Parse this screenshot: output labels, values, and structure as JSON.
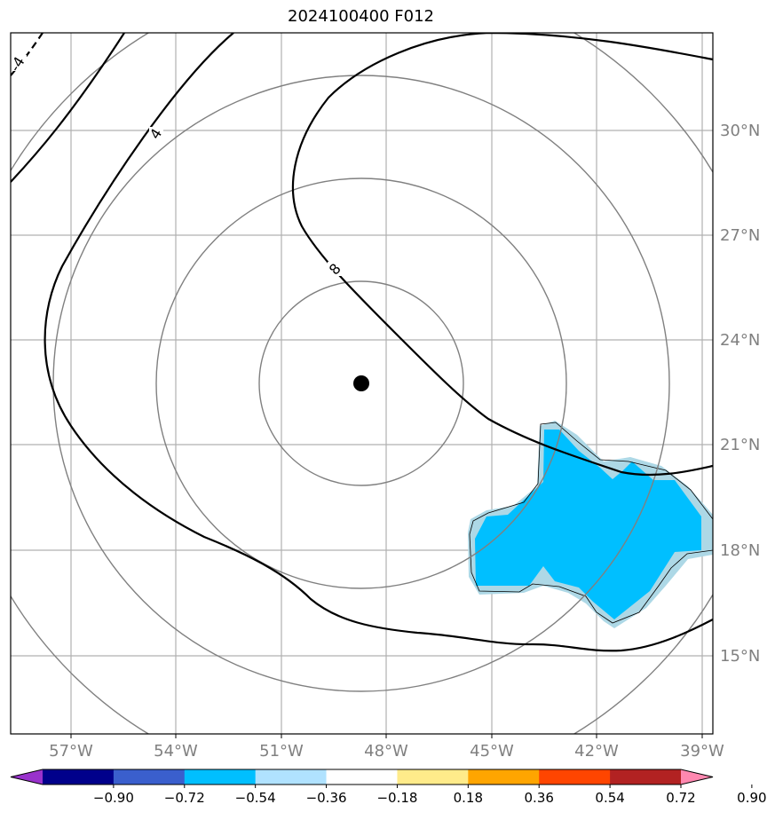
{
  "title": "2024100400 F012",
  "map": {
    "lon_ticks": [
      "57°W",
      "54°W",
      "51°W",
      "48°W",
      "45°W",
      "42°W",
      "39°W"
    ],
    "lat_ticks": [
      "30°N",
      "27°N",
      "24°N",
      "21°N",
      "18°N",
      "15°N"
    ],
    "storm_center": {
      "lon": -48.8,
      "lat": 22.8
    },
    "range_rings_deg": [
      2.7,
      5.4,
      8.1,
      10.8
    ],
    "contour_labels": [
      "4",
      "4",
      "8"
    ],
    "dashed_contour_label": "-4",
    "shading_color": "#00bfff",
    "light_shading_color": "#add8e6",
    "grid_color": "#b0b0b0",
    "ring_color": "#808080"
  },
  "colorbar": {
    "colors": [
      "#9932cc",
      "#00008b",
      "#3a5fcd",
      "#00bfff",
      "#b0e2ff",
      "#ffffff",
      "#ffeb8a",
      "#ffa500",
      "#ff4500",
      "#b22222",
      "#ff88b0"
    ],
    "labels": [
      "−0.90",
      "−0.72",
      "−0.54",
      "−0.36",
      "−0.18",
      "0.18",
      "0.36",
      "0.54",
      "0.72",
      "0.90"
    ]
  }
}
